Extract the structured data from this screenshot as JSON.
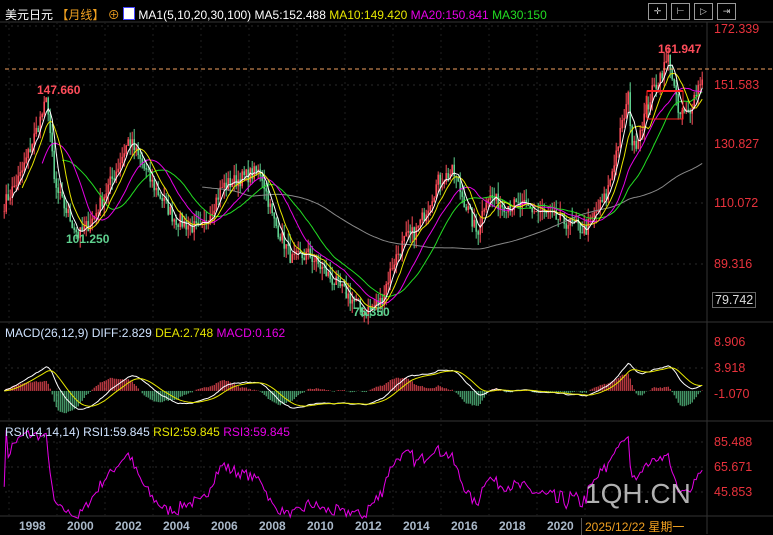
{
  "header": {
    "symbol": "美元日元",
    "period": "【月线】",
    "indicator": "MA1(5,10,20,30,100)",
    "ma5": "MA5:152.488",
    "ma10": "MA10:149.420",
    "ma20": "MA20:150.841",
    "ma30": "MA30:150"
  },
  "macd_header": {
    "name": "MACD(26,12,9)",
    "diff": "DIFF:2.829",
    "dea": "DEA:2.748",
    "macd": "MACD:0.162"
  },
  "rsi_header": {
    "name": "RSI(14,14,14)",
    "rsi1": "RSI1:59.845",
    "rsi2": "RSI2:59.845",
    "rsi3": "RSI3:59.845"
  },
  "price_axis": [
    "172.339",
    "151.583",
    "130.827",
    "110.072",
    "89.316",
    "79.742"
  ],
  "macd_axis": [
    "8.906",
    "3.918",
    "-1.070"
  ],
  "rsi_axis": [
    "85.488",
    "65.671",
    "45.853"
  ],
  "annotations": {
    "high1": "147.660",
    "low1": "101.250",
    "low2": "75.350",
    "high2": "161.947"
  },
  "x_axis": {
    "years": [
      "1998",
      "2000",
      "2002",
      "2004",
      "2006",
      "2008",
      "2010",
      "2012",
      "2014",
      "2016",
      "2018",
      "2020"
    ],
    "cursor_date": "2025/12/22",
    "weekday": "星期一"
  },
  "watermark": "1QH.CN",
  "toolbar": [
    "crosshair",
    "zoom-in-range",
    "play",
    "step-forward"
  ],
  "colors": {
    "up": "#ff4d5a",
    "down": "#5fd18f",
    "ma5": "#ffffff",
    "ma10": "#e6e600",
    "ma20": "#e600e6",
    "ma30": "#22dd22",
    "ma100": "#888888",
    "axis": "#e8323c"
  },
  "chart_data": {
    "type": "candlestick",
    "interval": "monthly",
    "ylim": [
      79.742,
      172.339
    ],
    "anchor_closes": [
      [
        1996.8,
        112
      ],
      [
        1997.5,
        122
      ],
      [
        1998.6,
        147.66
      ],
      [
        1998.9,
        118
      ],
      [
        1999.9,
        101.25
      ],
      [
        2000.5,
        107
      ],
      [
        2001.5,
        124
      ],
      [
        2002.0,
        134
      ],
      [
        2002.9,
        120
      ],
      [
        2003.9,
        107
      ],
      [
        2005.0,
        103
      ],
      [
        2005.9,
        118
      ],
      [
        2007.0,
        122
      ],
      [
        2007.5,
        123
      ],
      [
        2008.0,
        107
      ],
      [
        2008.8,
        93
      ],
      [
        2009.5,
        95
      ],
      [
        2010.5,
        86
      ],
      [
        2011.0,
        82
      ],
      [
        2011.8,
        75.35
      ],
      [
        2012.5,
        79
      ],
      [
        2013.0,
        92
      ],
      [
        2013.5,
        100
      ],
      [
        2014.0,
        103
      ],
      [
        2014.9,
        120
      ],
      [
        2015.5,
        123
      ],
      [
        2016.5,
        102
      ],
      [
        2016.9,
        115
      ],
      [
        2017.5,
        112
      ],
      [
        2018.5,
        111
      ],
      [
        2019.5,
        108
      ],
      [
        2020.5,
        105
      ],
      [
        2021.0,
        103
      ],
      [
        2021.9,
        115
      ],
      [
        2022.8,
        148
      ],
      [
        2023.0,
        130
      ],
      [
        2023.8,
        150
      ],
      [
        2024.5,
        161.947
      ],
      [
        2024.9,
        142
      ],
      [
        2025.3,
        143
      ],
      [
        2025.95,
        157
      ]
    ]
  }
}
